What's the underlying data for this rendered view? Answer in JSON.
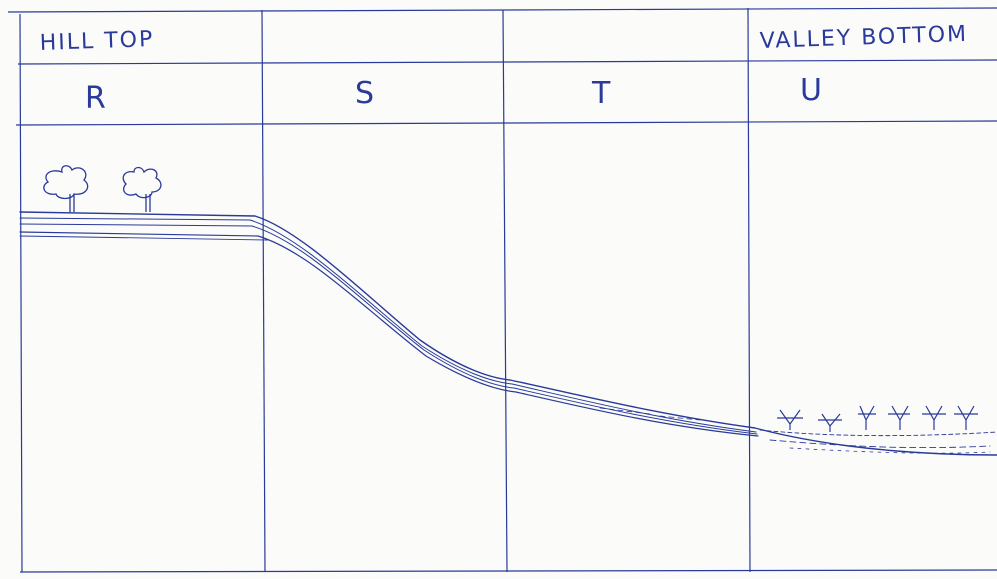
{
  "header": {
    "top_left_label": "HILL TOP",
    "top_right_label": "VALLEY BOTTOM"
  },
  "zones": [
    {
      "letter": "R"
    },
    {
      "letter": "S"
    },
    {
      "letter": "T"
    },
    {
      "letter": "U"
    }
  ],
  "colors": {
    "ink": "#2a3a9a",
    "paper": "#fbfbf9"
  }
}
